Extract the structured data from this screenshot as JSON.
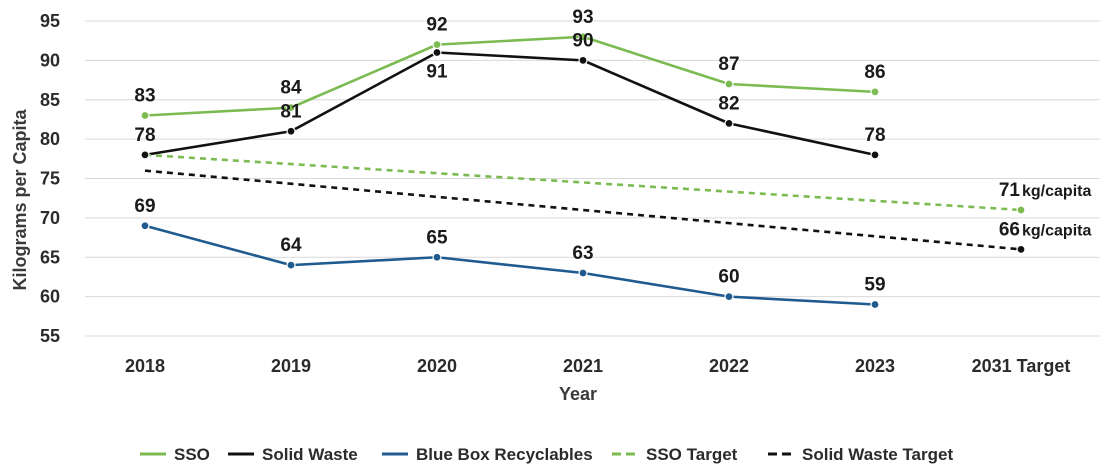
{
  "chart_data": {
    "type": "line",
    "title": "",
    "xlabel": "Year",
    "ylabel": "Kilograms per Capita",
    "categories": [
      "2018",
      "2019",
      "2020",
      "2021",
      "2022",
      "2023",
      "2031 Target"
    ],
    "yticks": [
      55,
      60,
      65,
      70,
      75,
      80,
      85,
      90,
      95
    ],
    "ylim": [
      52,
      96
    ],
    "grid": true,
    "legend_position": "bottom",
    "series": [
      {
        "name": "SSO",
        "color": "#7cbb52",
        "dash": "solid",
        "values": [
          83,
          84,
          92,
          93,
          87,
          86,
          null
        ],
        "labels": [
          "83",
          "84",
          "92",
          "93",
          "87",
          "86",
          ""
        ],
        "label_pos": [
          "above",
          "above",
          "above",
          "above",
          "above",
          "above",
          ""
        ]
      },
      {
        "name": "Solid Waste",
        "color": "#111111",
        "dash": "solid",
        "values": [
          78,
          81,
          91,
          90,
          82,
          78,
          null
        ],
        "labels": [
          "78",
          "81",
          "91",
          "90",
          "82",
          "78",
          ""
        ],
        "label_pos": [
          "above",
          "above",
          "below",
          "above",
          "above",
          "above",
          ""
        ]
      },
      {
        "name": "Blue Box Recyclables",
        "color": "#1f5b8e",
        "dash": "solid",
        "values": [
          69,
          64,
          65,
          63,
          60,
          59,
          null
        ],
        "labels": [
          "69",
          "64",
          "65",
          "63",
          "60",
          "59",
          ""
        ],
        "label_pos": [
          "above",
          "above",
          "above",
          "above",
          "above",
          "above",
          ""
        ]
      },
      {
        "name": "SSO Target",
        "color": "#7cbb52",
        "dash": "dashed",
        "values": [
          78,
          null,
          null,
          null,
          null,
          null,
          71
        ],
        "labels": [
          "",
          "",
          "",
          "",
          "",
          "",
          "71"
        ],
        "unit": "kg/capita",
        "label_pos": [
          "",
          "",
          "",
          "",
          "",
          "",
          "above"
        ]
      },
      {
        "name": "Solid Waste Target",
        "color": "#111111",
        "dash": "dashed",
        "values": [
          76,
          null,
          null,
          null,
          null,
          null,
          66
        ],
        "labels": [
          "",
          "",
          "",
          "",
          "",
          "",
          "66"
        ],
        "unit": "kg/capita",
        "label_pos": [
          "",
          "",
          "",
          "",
          "",
          "",
          "above"
        ]
      }
    ]
  }
}
